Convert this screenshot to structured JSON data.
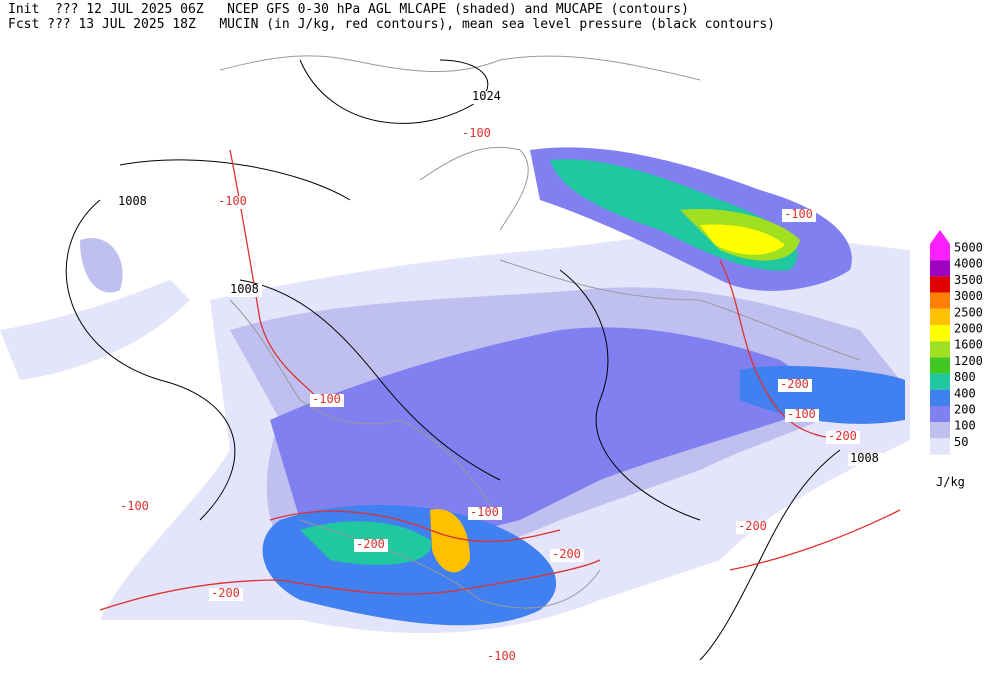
{
  "header": {
    "line1": "Init  ??? 12 JUL 2025 06Z   NCEP GFS 0-30 hPa AGL MLCAPE (shaded) and MUCAPE (contours)",
    "line2": "Fcst ??? 13 JUL 2025 18Z   MUCIN (in J/kg, red contours), mean sea level pressure (black contours)"
  },
  "colorbar": {
    "levels": [
      "5000",
      "4000",
      "3500",
      "3000",
      "2500",
      "2000",
      "1600",
      "1200",
      "800",
      "400",
      "200",
      "100",
      "50"
    ],
    "colors": [
      "#ff20ff",
      "#a000c0",
      "#e00000",
      "#ff8000",
      "#ffc000",
      "#ffff00",
      "#a0e020",
      "#40c820",
      "#20c8a0",
      "#4080f0",
      "#8080f0",
      "#c0c0f0",
      "#e4e4fa"
    ],
    "unit": "J/kg"
  },
  "contour_labels": {
    "pressure": [
      "1024",
      "1008",
      "1008",
      "1008"
    ],
    "mucin": [
      "-100",
      "-100",
      "-100",
      "-100",
      "-100",
      "-200",
      "-200",
      "-200",
      "-200",
      "-100",
      "-200",
      "-200",
      "-100",
      "-100"
    ]
  }
}
